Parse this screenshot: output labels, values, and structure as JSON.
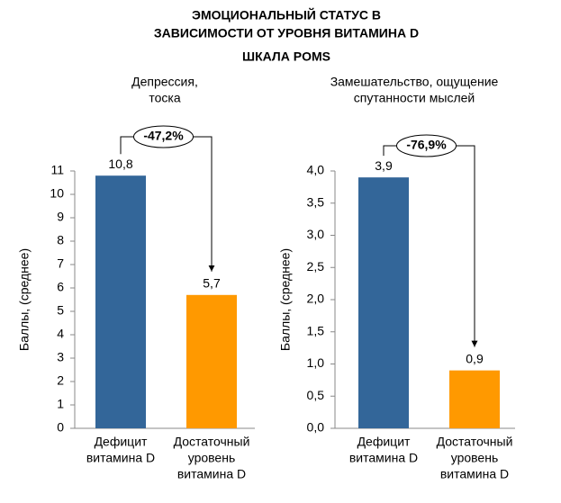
{
  "header": {
    "title": [
      "ЭМОЦИОНАЛЬНЫЙ СТАТУС В",
      "ЗАВИСИМОСТИ ОТ УРОВНЯ ВИТАМИНА D"
    ],
    "subtitle": "ШКАЛА POMS"
  },
  "chart_data": [
    {
      "type": "bar",
      "title": [
        "Депрессия,",
        "тоска"
      ],
      "y_label": "Баллы, (среднее)",
      "categories": [
        [
          "Дефицит",
          "витамина D"
        ],
        [
          "Достаточный",
          "уровень",
          "витамина D"
        ]
      ],
      "values": [
        10.8,
        5.7
      ],
      "value_labels": [
        "10,8",
        "5,7"
      ],
      "colors": [
        "#336699",
        "#ff9900"
      ],
      "ylim": [
        0,
        11
      ],
      "yticks": [
        0,
        1,
        2,
        3,
        4,
        5,
        6,
        7,
        8,
        9,
        10,
        11
      ],
      "annotation": "-47,2%"
    },
    {
      "type": "bar",
      "title": [
        "Замешательство, ощущение",
        "спутанности мыслей"
      ],
      "y_label": "Баллы, (среднее)",
      "categories": [
        [
          "Дефицит",
          "витамина D"
        ],
        [
          "Достаточный",
          "уровень",
          "витамина D"
        ]
      ],
      "values": [
        3.9,
        0.9
      ],
      "value_labels": [
        "3,9",
        "0,9"
      ],
      "colors": [
        "#336699",
        "#ff9900"
      ],
      "ylim": [
        0,
        4
      ],
      "yticks": [
        {
          "value": 0,
          "label": "0,0"
        },
        {
          "value": 0.5,
          "label": "0,5"
        },
        {
          "value": 1,
          "label": "1,0"
        },
        {
          "value": 1.5,
          "label": "1,5"
        },
        {
          "value": 2,
          "label": "2,0"
        },
        {
          "value": 2.5,
          "label": "2,5"
        },
        {
          "value": 3,
          "label": "3,0"
        },
        {
          "value": 3.5,
          "label": "3,5"
        },
        {
          "value": 4,
          "label": "4,0"
        }
      ],
      "annotation": "-76,9%"
    }
  ]
}
